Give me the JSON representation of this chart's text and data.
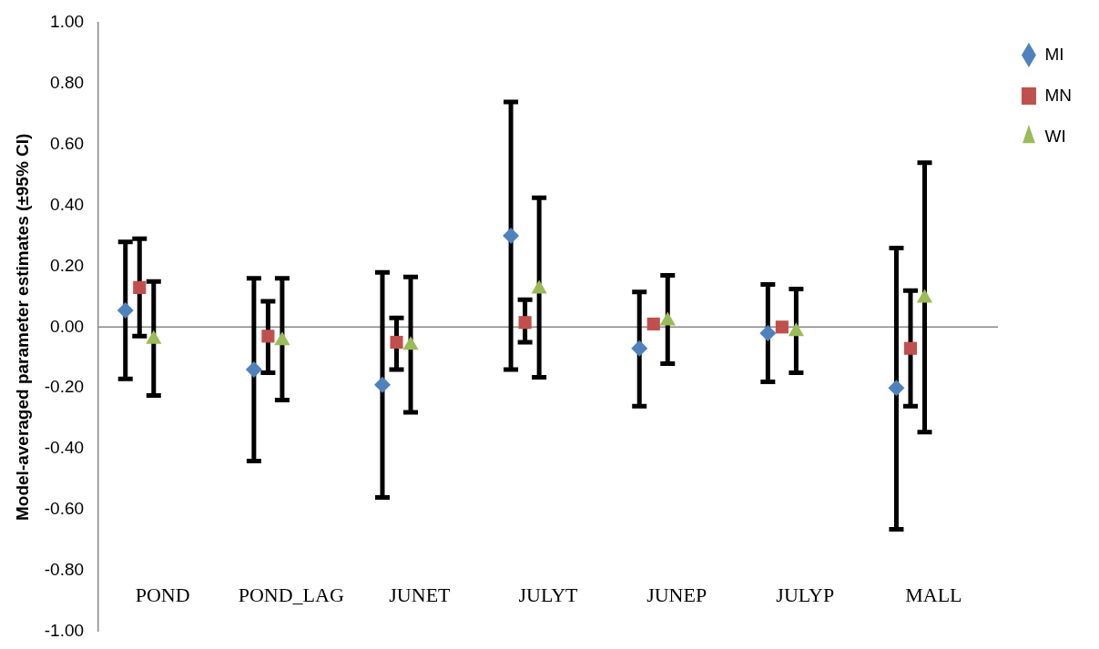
{
  "chart_data": {
    "type": "scatter",
    "ylabel": "Model-averaged parameter estimates (±95% CI)",
    "categories": [
      "POND",
      "POND_LAG",
      "JUNET",
      "JULYT",
      "JUNEP",
      "JULYP",
      "MALL"
    ],
    "ylim": [
      -1,
      1
    ],
    "yticks": [
      {
        "value": -1,
        "label": "-1.00"
      },
      {
        "value": -0.8,
        "label": "-0.80"
      },
      {
        "value": -0.6,
        "label": "-0.60"
      },
      {
        "value": -0.4,
        "label": "-0.40"
      },
      {
        "value": -0.2,
        "label": "-0.20"
      },
      {
        "value": 0,
        "label": "0.00"
      },
      {
        "value": 0.2,
        "label": "0.20"
      },
      {
        "value": 0.4,
        "label": "0.40"
      },
      {
        "value": 0.6,
        "label": "0.60"
      },
      {
        "value": 0.8,
        "label": "0.80"
      },
      {
        "value": 1,
        "label": "1.00"
      }
    ],
    "legend": "top right",
    "series": [
      {
        "name": "MI",
        "color": "#4f81bd",
        "marker": "diamond",
        "values": [
          0.055,
          -0.14,
          -0.19,
          0.3,
          -0.07,
          -0.02,
          -0.2
        ],
        "errors": [
          [
            -0.17,
            0.28
          ],
          [
            -0.44,
            0.16
          ],
          [
            -0.56,
            0.18
          ],
          [
            -0.14,
            0.74
          ],
          [
            -0.26,
            0.115
          ],
          [
            -0.18,
            0.14
          ],
          [
            -0.665,
            0.26
          ]
        ]
      },
      {
        "name": "MN",
        "color": "#c0504d",
        "marker": "square",
        "values": [
          0.13,
          -0.03,
          -0.05,
          0.015,
          0.01,
          0.0,
          -0.07
        ],
        "errors": [
          [
            -0.03,
            0.29
          ],
          [
            -0.15,
            0.085
          ],
          [
            -0.14,
            0.03
          ],
          [
            -0.05,
            0.09
          ],
          null,
          null,
          [
            -0.26,
            0.12
          ]
        ]
      },
      {
        "name": "WI",
        "color": "#9bbb59",
        "marker": "triangle",
        "values": [
          -0.04,
          -0.045,
          -0.06,
          0.125,
          0.02,
          -0.015,
          0.095
        ],
        "errors": [
          [
            -0.225,
            0.15
          ],
          [
            -0.24,
            0.16
          ],
          [
            -0.28,
            0.165
          ],
          [
            -0.165,
            0.425
          ],
          [
            -0.12,
            0.17
          ],
          [
            -0.15,
            0.125
          ],
          [
            -0.345,
            0.54
          ]
        ]
      }
    ]
  }
}
